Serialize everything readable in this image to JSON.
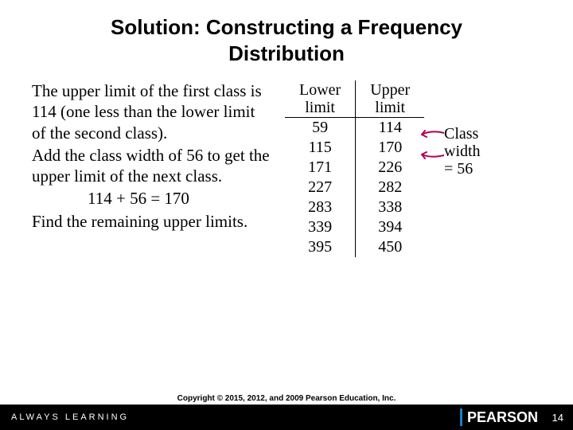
{
  "title_line1": "Solution: Constructing a Frequency",
  "title_line2": "Distribution",
  "title_fontsize": 26,
  "body_fontsize": 21,
  "paragraphs": {
    "p1": "The upper limit of the first class is 114 (one less than the lower limit of the second class).",
    "p2": "Add the class width of 56 to get the upper limit of the next class.",
    "eq": "114 + 56 = 170",
    "p3": "Find the remaining upper limits."
  },
  "table": {
    "header_lower": "Lower limit",
    "header_upper": "Upper limit",
    "rows": [
      {
        "lower": "59",
        "upper": "114"
      },
      {
        "lower": "115",
        "upper": "170"
      },
      {
        "lower": "171",
        "upper": "226"
      },
      {
        "lower": "227",
        "upper": "282"
      },
      {
        "lower": "283",
        "upper": "338"
      },
      {
        "lower": "339",
        "upper": "394"
      },
      {
        "lower": "395",
        "upper": "450"
      }
    ],
    "cell_fontsize": 20
  },
  "annotation": {
    "line1": "Class",
    "line2": "width = 56",
    "fontsize": 20,
    "arrow_color": "#b30059"
  },
  "footer": {
    "always_learning": "ALWAYS LEARNING",
    "copyright": "Copyright © 2015, 2012, and 2009 Pearson Education, Inc.",
    "brand": "PEARSON",
    "slide_number": "14"
  },
  "colors": {
    "title": "#000000",
    "text": "#000000",
    "footer_bg": "#000000",
    "footer_text": "#ffffff",
    "pearson_bar": "#1b7fc4"
  }
}
